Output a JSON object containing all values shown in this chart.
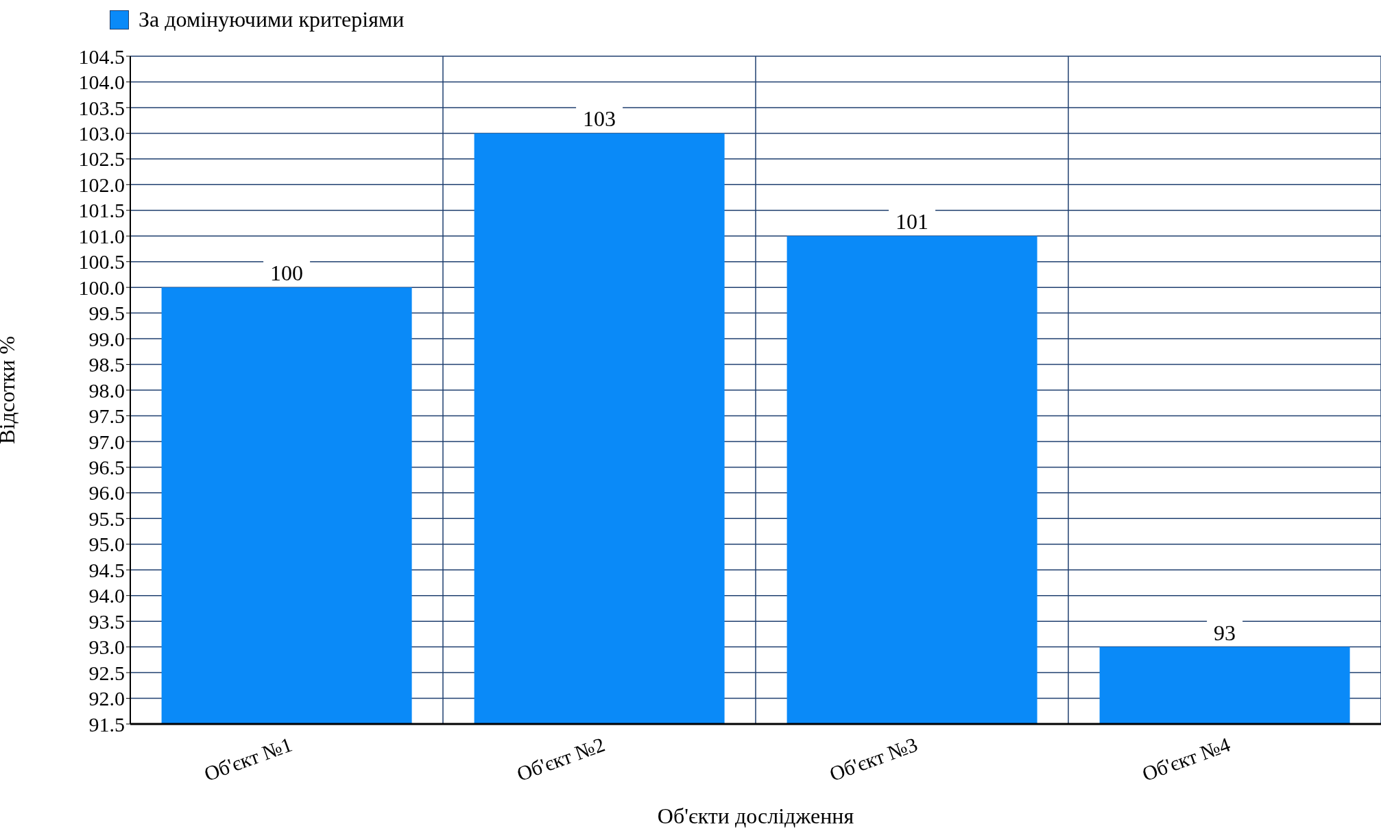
{
  "chart_data": {
    "type": "bar",
    "xlabel": "Об'єкти дослідження",
    "ylabel": "Відсотки %",
    "categories": [
      "Об'єкт №1",
      "Об'єкт №2",
      "Об'єкт №3",
      "Об'єкт №4"
    ],
    "series": [
      {
        "name": "За домінуючими критеріями",
        "color": "#0a8af8",
        "values": [
          100,
          103,
          101,
          93
        ]
      }
    ],
    "ylim": [
      91.5,
      104.5
    ],
    "yticks": [
      {
        "value": 91.5,
        "label": "91.5"
      },
      {
        "value": 92,
        "label": "92.0"
      },
      {
        "value": 92.5,
        "label": "92.5"
      },
      {
        "value": 93,
        "label": "93.0"
      },
      {
        "value": 93.5,
        "label": "93.5"
      },
      {
        "value": 94,
        "label": "94.0"
      },
      {
        "value": 94.5,
        "label": "94.5"
      },
      {
        "value": 95,
        "label": "95.0"
      },
      {
        "value": 95.5,
        "label": "95.5"
      },
      {
        "value": 96,
        "label": "96.0"
      },
      {
        "value": 96.5,
        "label": "96.5"
      },
      {
        "value": 97,
        "label": "97.0"
      },
      {
        "value": 97.5,
        "label": "97.5"
      },
      {
        "value": 98,
        "label": "98.0"
      },
      {
        "value": 98.5,
        "label": "98.5"
      },
      {
        "value": 99,
        "label": "99.0"
      },
      {
        "value": 99.5,
        "label": "99.5"
      },
      {
        "value": 100,
        "label": "100.0"
      },
      {
        "value": 100.5,
        "label": "100.5"
      },
      {
        "value": 101,
        "label": "101.0"
      },
      {
        "value": 101.5,
        "label": "101.5"
      },
      {
        "value": 102,
        "label": "102.0"
      },
      {
        "value": 102.5,
        "label": "102.5"
      },
      {
        "value": 103,
        "label": "103.0"
      },
      {
        "value": 103.5,
        "label": "103.5"
      },
      {
        "value": 104,
        "label": "104.0"
      },
      {
        "value": 104.5,
        "label": "104.5"
      }
    ],
    "grid": true,
    "legend": "top left",
    "data_labels": true
  }
}
